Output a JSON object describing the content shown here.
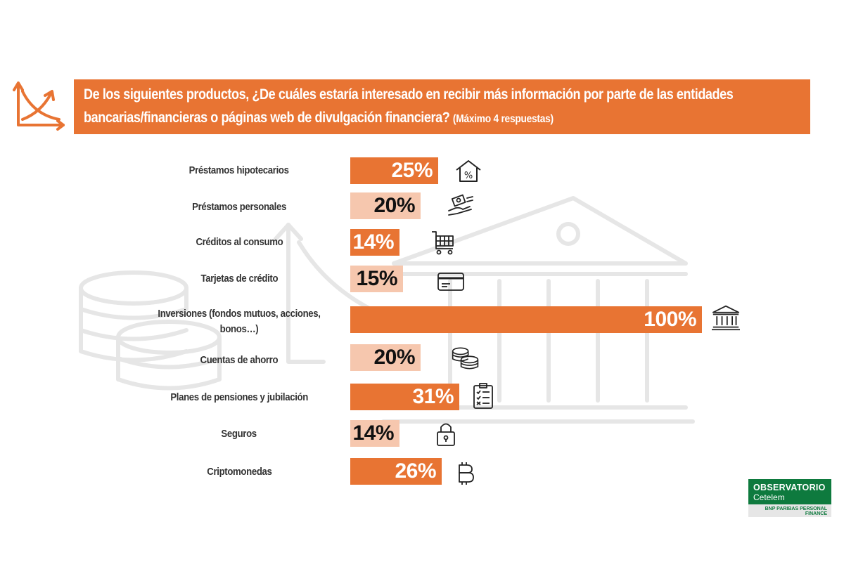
{
  "header": {
    "question": "De los siguientes productos, ¿De cuáles estaría interesado en recibir más información por parte de las entidades bancarias/financieras o páginas web de divulgación financiera?",
    "note": "(Máximo 4 respuestas)"
  },
  "logo": {
    "line1": "OBSERVATORIO",
    "line2": "Cetelem",
    "sub": "BNP PARIBAS PERSONAL FINANCE"
  },
  "colors": {
    "dark_bar": "#E87433",
    "light_bar": "#F6C7AE",
    "dark_text": "#ffffff",
    "light_text": "#111111"
  },
  "chart_data": {
    "type": "bar",
    "orientation": "horizontal",
    "title": "",
    "xlim": [
      0,
      100
    ],
    "categories": [
      "Préstamos hipotecarios",
      "Préstamos personales",
      "Créditos al consumo",
      "Tarjetas de crédito",
      "Inversiones (fondos mutuos, acciones, bonos…)",
      "Cuentas de ahorro",
      "Planes de pensiones y jubilación",
      "Seguros",
      "Criptomonedas"
    ],
    "values": [
      25,
      20,
      14,
      15,
      100,
      20,
      31,
      14,
      26
    ],
    "labels": [
      "25%",
      "20%",
      "14%",
      "15%",
      "100%",
      "20%",
      "31%",
      "14%",
      "26%"
    ],
    "bar_style": [
      "dark",
      "light",
      "dark",
      "light",
      "dark",
      "light",
      "dark",
      "light",
      "dark"
    ],
    "icons": [
      "house-percent-icon",
      "hand-money-icon",
      "shopping-cart-icon",
      "credit-card-icon",
      "bank-icon",
      "coins-icon",
      "clipboard-checklist-icon",
      "padlock-icon",
      "bitcoin-icon"
    ]
  }
}
